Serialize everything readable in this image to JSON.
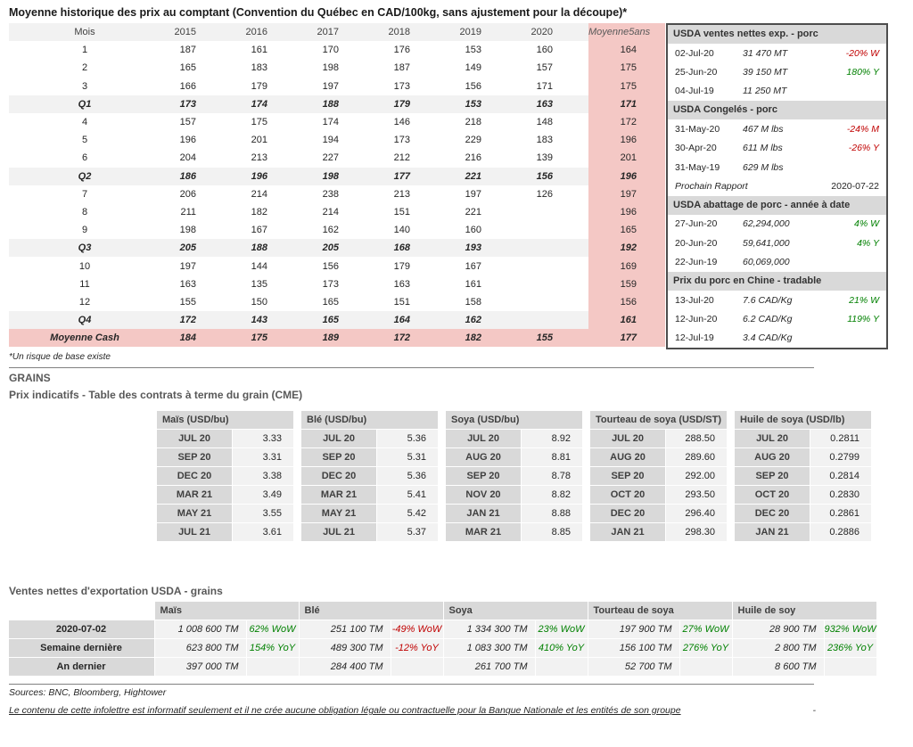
{
  "title": "Moyenne historique des prix au comptant (Convention du Québec en CAD/100kg, sans ajustement pour la découpe)*",
  "footnote": "*Un risque de base existe",
  "price_table": {
    "headers": [
      "Mois",
      "2015",
      "2016",
      "2017",
      "2018",
      "2019",
      "2020",
      "Moyenne5ans"
    ],
    "rows": [
      {
        "label": "1",
        "style": "month",
        "cells": [
          "187",
          "161",
          "170",
          "176",
          "153",
          "160",
          "164"
        ]
      },
      {
        "label": "2",
        "style": "month",
        "cells": [
          "165",
          "183",
          "198",
          "187",
          "149",
          "157",
          "175"
        ]
      },
      {
        "label": "3",
        "style": "month",
        "cells": [
          "166",
          "179",
          "197",
          "173",
          "156",
          "171",
          "175"
        ]
      },
      {
        "label": "Q1",
        "style": "quarter",
        "cells": [
          "173",
          "174",
          "188",
          "179",
          "153",
          "163",
          "171"
        ]
      },
      {
        "label": "4",
        "style": "month",
        "cells": [
          "157",
          "175",
          "174",
          "146",
          "218",
          "148",
          "172"
        ]
      },
      {
        "label": "5",
        "style": "month",
        "cells": [
          "196",
          "201",
          "194",
          "173",
          "229",
          "183",
          "196"
        ]
      },
      {
        "label": "6",
        "style": "month",
        "cells": [
          "204",
          "213",
          "227",
          "212",
          "216",
          "139",
          "201"
        ]
      },
      {
        "label": "Q2",
        "style": "quarter",
        "cells": [
          "186",
          "196",
          "198",
          "177",
          "221",
          "156",
          "196"
        ]
      },
      {
        "label": "7",
        "style": "month",
        "cells": [
          "206",
          "214",
          "238",
          "213",
          "197",
          "126",
          "197"
        ]
      },
      {
        "label": "8",
        "style": "month",
        "cells": [
          "211",
          "182",
          "214",
          "151",
          "221",
          "",
          "196"
        ]
      },
      {
        "label": "9",
        "style": "month",
        "cells": [
          "198",
          "167",
          "162",
          "140",
          "160",
          "",
          "165"
        ]
      },
      {
        "label": "Q3",
        "style": "quarter",
        "cells": [
          "205",
          "188",
          "205",
          "168",
          "193",
          "",
          "192"
        ]
      },
      {
        "label": "10",
        "style": "month",
        "cells": [
          "197",
          "144",
          "156",
          "179",
          "167",
          "",
          "169"
        ]
      },
      {
        "label": "11",
        "style": "month",
        "cells": [
          "163",
          "135",
          "173",
          "163",
          "161",
          "",
          "159"
        ]
      },
      {
        "label": "12",
        "style": "month",
        "cells": [
          "155",
          "150",
          "165",
          "151",
          "158",
          "",
          "156"
        ]
      },
      {
        "label": "Q4",
        "style": "quarter",
        "cells": [
          "172",
          "143",
          "165",
          "164",
          "162",
          "",
          "161"
        ]
      },
      {
        "label": "Moyenne Cash",
        "style": "average",
        "cells": [
          "184",
          "175",
          "189",
          "172",
          "182",
          "155",
          "177"
        ]
      }
    ]
  },
  "info_panel": {
    "sections": [
      {
        "header": "USDA ventes nettes exp. - porc",
        "rows": [
          {
            "date": "02-Jul-20",
            "value": "31 470 MT",
            "change": "-20% W",
            "change_color": "red"
          },
          {
            "date": "25-Jun-20",
            "value": "39 150 MT",
            "change": "180% Y",
            "change_color": "green"
          },
          {
            "date": "04-Jul-19",
            "value": "11 250 MT",
            "change": "",
            "change_color": ""
          }
        ]
      },
      {
        "header": "USDA Congelés - porc",
        "rows": [
          {
            "date": "31-May-20",
            "value": "467 M lbs",
            "change": "-24% M",
            "change_color": "red"
          },
          {
            "date": "30-Apr-20",
            "value": "611 M lbs",
            "change": "-26% Y",
            "change_color": "red"
          },
          {
            "date": "31-May-19",
            "value": "629 M lbs",
            "change": "",
            "change_color": ""
          }
        ]
      },
      {
        "note_left": "Prochain Rapport",
        "note_right": "2020-07-22"
      },
      {
        "header": "USDA abattage de porc - année à date",
        "rows": [
          {
            "date": "27-Jun-20",
            "value": "62,294,000",
            "change": "4% W",
            "change_color": "green"
          },
          {
            "date": "20-Jun-20",
            "value": "59,641,000",
            "change": "4% Y",
            "change_color": "green"
          },
          {
            "date": "22-Jun-19",
            "value": "60,069,000",
            "change": "",
            "change_color": ""
          }
        ]
      },
      {
        "header": "Prix du porc en Chine - tradable",
        "rows": [
          {
            "date": "13-Jul-20",
            "value": "7.6 CAD/Kg",
            "change": "21% W",
            "change_color": "green"
          },
          {
            "date": "12-Jun-20",
            "value": "6.2 CAD/Kg",
            "change": "119% Y",
            "change_color": "green"
          },
          {
            "date": "12-Jul-19",
            "value": "3.4 CAD/Kg",
            "change": "",
            "change_color": ""
          }
        ]
      }
    ]
  },
  "grains": {
    "section_label": "GRAINS",
    "futures_title": "Prix indicatifs - Table des contrats à terme du grain (CME)",
    "futures_tables": [
      {
        "header": "Maïs (USD/bu)",
        "rows": [
          [
            "JUL 20",
            "3.33"
          ],
          [
            "SEP 20",
            "3.31"
          ],
          [
            "DEC 20",
            "3.38"
          ],
          [
            "MAR 21",
            "3.49"
          ],
          [
            "MAY 21",
            "3.55"
          ],
          [
            "JUL 21",
            "3.61"
          ]
        ]
      },
      {
        "header": "Blé (USD/bu)",
        "rows": [
          [
            "JUL 20",
            "5.36"
          ],
          [
            "SEP 20",
            "5.31"
          ],
          [
            "DEC 20",
            "5.36"
          ],
          [
            "MAR 21",
            "5.41"
          ],
          [
            "MAY 21",
            "5.42"
          ],
          [
            "JUL 21",
            "5.37"
          ]
        ]
      },
      {
        "header": "Soya (USD/bu)",
        "rows": [
          [
            "JUL 20",
            "8.92"
          ],
          [
            "AUG 20",
            "8.81"
          ],
          [
            "SEP 20",
            "8.78"
          ],
          [
            "NOV 20",
            "8.82"
          ],
          [
            "JAN 21",
            "8.88"
          ],
          [
            "MAR 21",
            "8.85"
          ]
        ]
      },
      {
        "header": "Tourteau de soya (USD/ST)",
        "rows": [
          [
            "JUL 20",
            "288.50"
          ],
          [
            "AUG 20",
            "289.60"
          ],
          [
            "SEP 20",
            "292.00"
          ],
          [
            "OCT 20",
            "293.50"
          ],
          [
            "DEC 20",
            "296.40"
          ],
          [
            "JAN 21",
            "298.30"
          ]
        ]
      },
      {
        "header": "Huile de soya (USD/lb)",
        "rows": [
          [
            "JUL 20",
            "0.2811"
          ],
          [
            "AUG 20",
            "0.2799"
          ],
          [
            "SEP 20",
            "0.2814"
          ],
          [
            "OCT 20",
            "0.2830"
          ],
          [
            "DEC 20",
            "0.2861"
          ],
          [
            "JAN 21",
            "0.2886"
          ]
        ]
      }
    ],
    "exports_title": "Ventes nettes d'exportation USDA - grains",
    "exports_table": {
      "col_headers": [
        "Maïs",
        "Blé",
        "Soya",
        "Tourteau de soya",
        "Huile de soy"
      ],
      "rows": [
        {
          "label": "2020-07-02",
          "cells": [
            {
              "value": "1 008 600 TM",
              "change": "62% WoW",
              "change_color": "green"
            },
            {
              "value": "251 100 TM",
              "change": "-49% WoW",
              "change_color": "red"
            },
            {
              "value": "1 334 300 TM",
              "change": "23% WoW",
              "change_color": "green"
            },
            {
              "value": "197 900 TM",
              "change": "27% WoW",
              "change_color": "green"
            },
            {
              "value": "28 900 TM",
              "change": "932% WoW",
              "change_color": "green"
            }
          ]
        },
        {
          "label": "Semaine dernière",
          "cells": [
            {
              "value": "623 800 TM",
              "change": "154% YoY",
              "change_color": "green"
            },
            {
              "value": "489 300 TM",
              "change": "-12% YoY",
              "change_color": "red"
            },
            {
              "value": "1 083 300 TM",
              "change": "410% YoY",
              "change_color": "green"
            },
            {
              "value": "156 100 TM",
              "change": "276% YoY",
              "change_color": "green"
            },
            {
              "value": "2 800 TM",
              "change": "236% YoY",
              "change_color": "green"
            }
          ]
        },
        {
          "label": "An dernier",
          "cells": [
            {
              "value": "397 000 TM",
              "change": "",
              "change_color": ""
            },
            {
              "value": "284 400 TM",
              "change": "",
              "change_color": ""
            },
            {
              "value": "261 700 TM",
              "change": "",
              "change_color": ""
            },
            {
              "value": "52 700 TM",
              "change": "",
              "change_color": ""
            },
            {
              "value": "8 600 TM",
              "change": "",
              "change_color": ""
            }
          ]
        }
      ]
    }
  },
  "footer": {
    "sources": "Sources: BNC, Bloomberg, Hightower",
    "disclaimer": "Le contenu de cette infolettre est informatif seulement et il ne crée aucune obligation légale ou contractuelle pour la Banque Nationale et les entités de son groupe",
    "dash": "-"
  },
  "colors": {
    "positive_green": "#008000",
    "negative_red": "#c00000",
    "highlight_pink": "#f4c8c5",
    "header_gray": "#d9d9d9",
    "row_gray": "#f2f2f2"
  }
}
